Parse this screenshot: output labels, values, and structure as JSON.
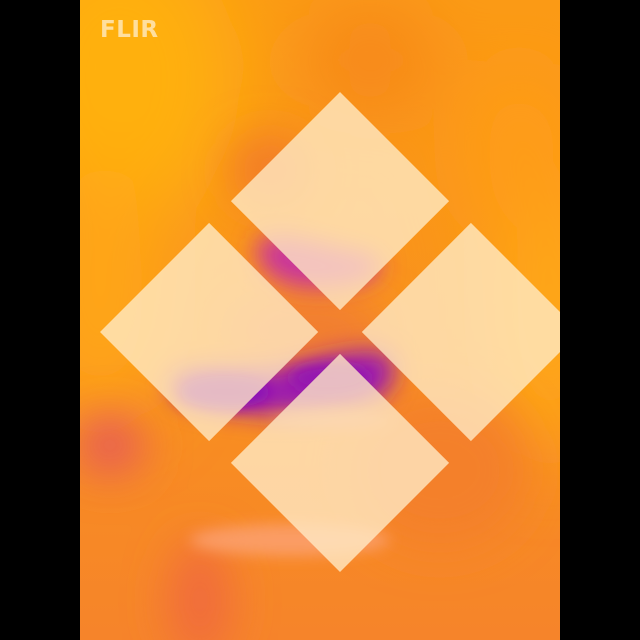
{
  "overlay": {
    "brand_text": "FLIR",
    "brand_icon": "flir-logo-icon"
  },
  "palette": {
    "background_bars": "#000000",
    "warm_dominant": "#f88a1c",
    "hot_yellow": "#ffb000",
    "cool_magenta": "#c2309a",
    "cold_purple": "#8a12b4"
  }
}
